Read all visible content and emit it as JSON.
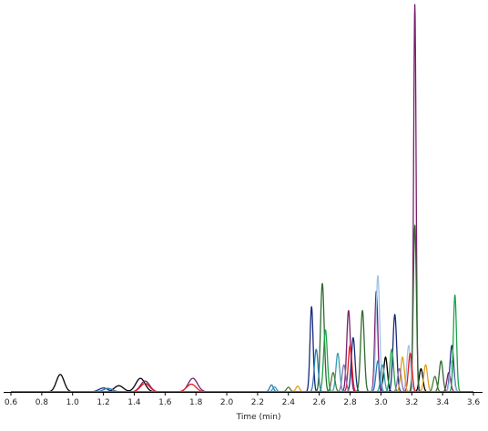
{
  "chart_data": {
    "type": "line",
    "title": "",
    "xlabel": "Time (min)",
    "ylabel": "",
    "xlim": [
      0.6,
      3.6
    ],
    "ylim": [
      0,
      100
    ],
    "x_ticks": [
      "0.6",
      "0.8",
      "1.0",
      "1.2",
      "1.4",
      "1.6",
      "1.8",
      "2.0",
      "2.2",
      "2.4",
      "2.6",
      "2.8",
      "3.0",
      "3.2",
      "3.4",
      "3.6"
    ],
    "grid": false,
    "legend": "none",
    "series": [
      {
        "color": "#000000",
        "peaks": [
          [
            0.92,
            4.5,
            0.025
          ],
          [
            1.3,
            1.6,
            0.03
          ],
          [
            1.44,
            3.5,
            0.03
          ],
          [
            3.03,
            9,
            0.012
          ],
          [
            3.26,
            6,
            0.012
          ]
        ]
      },
      {
        "color": "#7a1f6e",
        "peaks": [
          [
            1.47,
            2.8,
            0.03
          ],
          [
            1.78,
            3.5,
            0.03
          ],
          [
            2.79,
            21,
            0.012
          ],
          [
            2.97,
            26,
            0.01
          ],
          [
            3.22,
            100,
            0.008
          ],
          [
            3.44,
            5,
            0.012
          ]
        ]
      },
      {
        "color": "#1a2a7a",
        "peaks": [
          [
            1.2,
            1.0,
            0.03
          ],
          [
            2.55,
            22,
            0.01
          ],
          [
            2.82,
            14,
            0.012
          ],
          [
            3.09,
            20,
            0.012
          ],
          [
            3.46,
            12,
            0.012
          ]
        ]
      },
      {
        "color": "#2f6b2f",
        "peaks": [
          [
            2.62,
            28,
            0.012
          ],
          [
            2.88,
            21,
            0.012
          ],
          [
            3.22,
            43,
            0.01
          ],
          [
            3.39,
            8,
            0.012
          ]
        ]
      },
      {
        "color": "#9dc3e6",
        "peaks": [
          [
            2.98,
            30,
            0.012
          ],
          [
            3.18,
            12,
            0.012
          ],
          [
            3.46,
            8,
            0.012
          ]
        ]
      },
      {
        "color": "#1fa34a",
        "peaks": [
          [
            2.64,
            16,
            0.012
          ],
          [
            3.07,
            11,
            0.012
          ],
          [
            3.48,
            25,
            0.01
          ]
        ]
      },
      {
        "color": "#e31a1c",
        "peaks": [
          [
            1.47,
            2.2,
            0.03
          ],
          [
            1.77,
            2.0,
            0.03
          ],
          [
            2.8,
            12,
            0.012
          ],
          [
            3.19,
            10,
            0.012
          ]
        ]
      },
      {
        "color": "#2c7bb6",
        "peaks": [
          [
            1.23,
            0.9,
            0.03
          ],
          [
            2.29,
            1.8,
            0.012
          ],
          [
            2.58,
            11,
            0.012
          ],
          [
            2.98,
            8,
            0.012
          ]
        ]
      },
      {
        "color": "#3a9fb0",
        "peaks": [
          [
            2.31,
            1.3,
            0.012
          ],
          [
            2.72,
            10,
            0.012
          ],
          [
            3.01,
            7,
            0.012
          ]
        ]
      },
      {
        "color": "#e0a020",
        "peaks": [
          [
            2.46,
            1.5,
            0.012
          ],
          [
            3.14,
            9,
            0.012
          ],
          [
            3.29,
            7,
            0.012
          ]
        ]
      },
      {
        "color": "#8b6fb0",
        "peaks": [
          [
            2.76,
            7,
            0.012
          ],
          [
            3.12,
            6,
            0.012
          ]
        ]
      },
      {
        "color": "#4a7a3a",
        "peaks": [
          [
            2.4,
            1.2,
            0.012
          ],
          [
            2.69,
            5,
            0.012
          ],
          [
            3.35,
            4,
            0.012
          ]
        ]
      }
    ]
  }
}
